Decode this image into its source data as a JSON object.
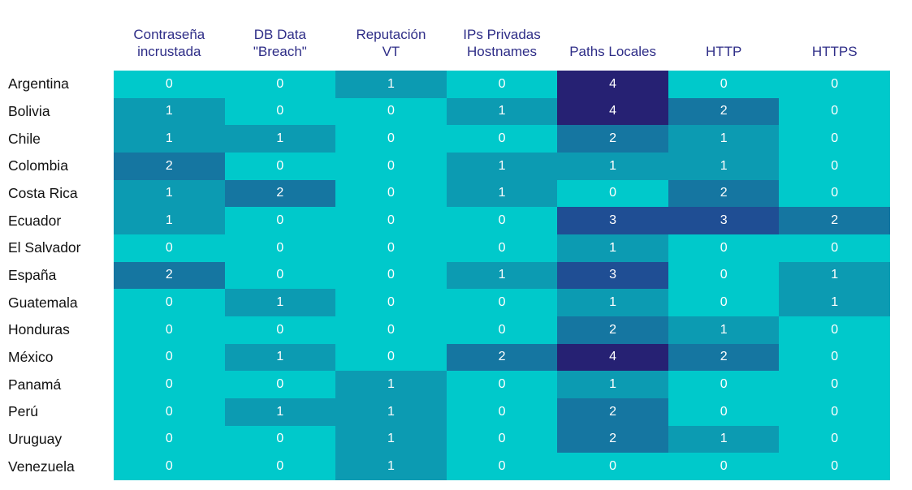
{
  "chart_data": {
    "type": "heatmap",
    "title": "",
    "columns": [
      {
        "label": "Contraseña incrustada",
        "lines": [
          "Contraseña",
          "incrustada"
        ]
      },
      {
        "label": "DB Data \"Breach\"",
        "lines": [
          "DB Data",
          "\"Breach\""
        ]
      },
      {
        "label": "Reputación VT",
        "lines": [
          "Reputación",
          "VT"
        ]
      },
      {
        "label": "IPs Privadas Hostnames",
        "lines": [
          "IPs Privadas",
          "Hostnames"
        ]
      },
      {
        "label": "Paths Locales",
        "lines": [
          "Paths Locales"
        ]
      },
      {
        "label": "HTTP",
        "lines": [
          "HTTP"
        ]
      },
      {
        "label": "HTTPS",
        "lines": [
          "HTTPS"
        ]
      }
    ],
    "rows": [
      {
        "label": "Argentina",
        "values": [
          0,
          0,
          1,
          0,
          4,
          0,
          0
        ]
      },
      {
        "label": "Bolivia",
        "values": [
          1,
          0,
          0,
          1,
          4,
          2,
          0
        ]
      },
      {
        "label": "Chile",
        "values": [
          1,
          1,
          0,
          0,
          2,
          1,
          0
        ]
      },
      {
        "label": "Colombia",
        "values": [
          2,
          0,
          0,
          1,
          1,
          1,
          0
        ]
      },
      {
        "label": "Costa Rica",
        "values": [
          1,
          2,
          0,
          1,
          0,
          2,
          0
        ]
      },
      {
        "label": "Ecuador",
        "values": [
          1,
          0,
          0,
          0,
          3,
          3,
          2
        ]
      },
      {
        "label": "El Salvador",
        "values": [
          0,
          0,
          0,
          0,
          1,
          0,
          0
        ]
      },
      {
        "label": "España",
        "values": [
          2,
          0,
          0,
          1,
          3,
          0,
          1
        ]
      },
      {
        "label": "Guatemala",
        "values": [
          0,
          1,
          0,
          0,
          1,
          0,
          1
        ]
      },
      {
        "label": "Honduras",
        "values": [
          0,
          0,
          0,
          0,
          2,
          1,
          0
        ]
      },
      {
        "label": "México",
        "values": [
          0,
          1,
          0,
          2,
          4,
          2,
          0
        ]
      },
      {
        "label": "Panamá",
        "values": [
          0,
          0,
          1,
          0,
          1,
          0,
          0
        ]
      },
      {
        "label": "Perú",
        "values": [
          0,
          1,
          1,
          0,
          2,
          0,
          0
        ]
      },
      {
        "label": "Uruguay",
        "values": [
          0,
          0,
          1,
          0,
          2,
          1,
          0
        ]
      },
      {
        "label": "Venezuela",
        "values": [
          0,
          0,
          1,
          0,
          0,
          0,
          0
        ]
      }
    ],
    "value_range": [
      0,
      4
    ],
    "color_scale": {
      "0": "#00C9CB",
      "1": "#0C9BB2",
      "2": "#1576A1",
      "3": "#1F4E94",
      "4": "#262173"
    },
    "cell_text_color": "#FFFFFF",
    "header_text_color": "#2E2D87",
    "row_label_color": "#111111",
    "legend": "none",
    "grid": false
  }
}
